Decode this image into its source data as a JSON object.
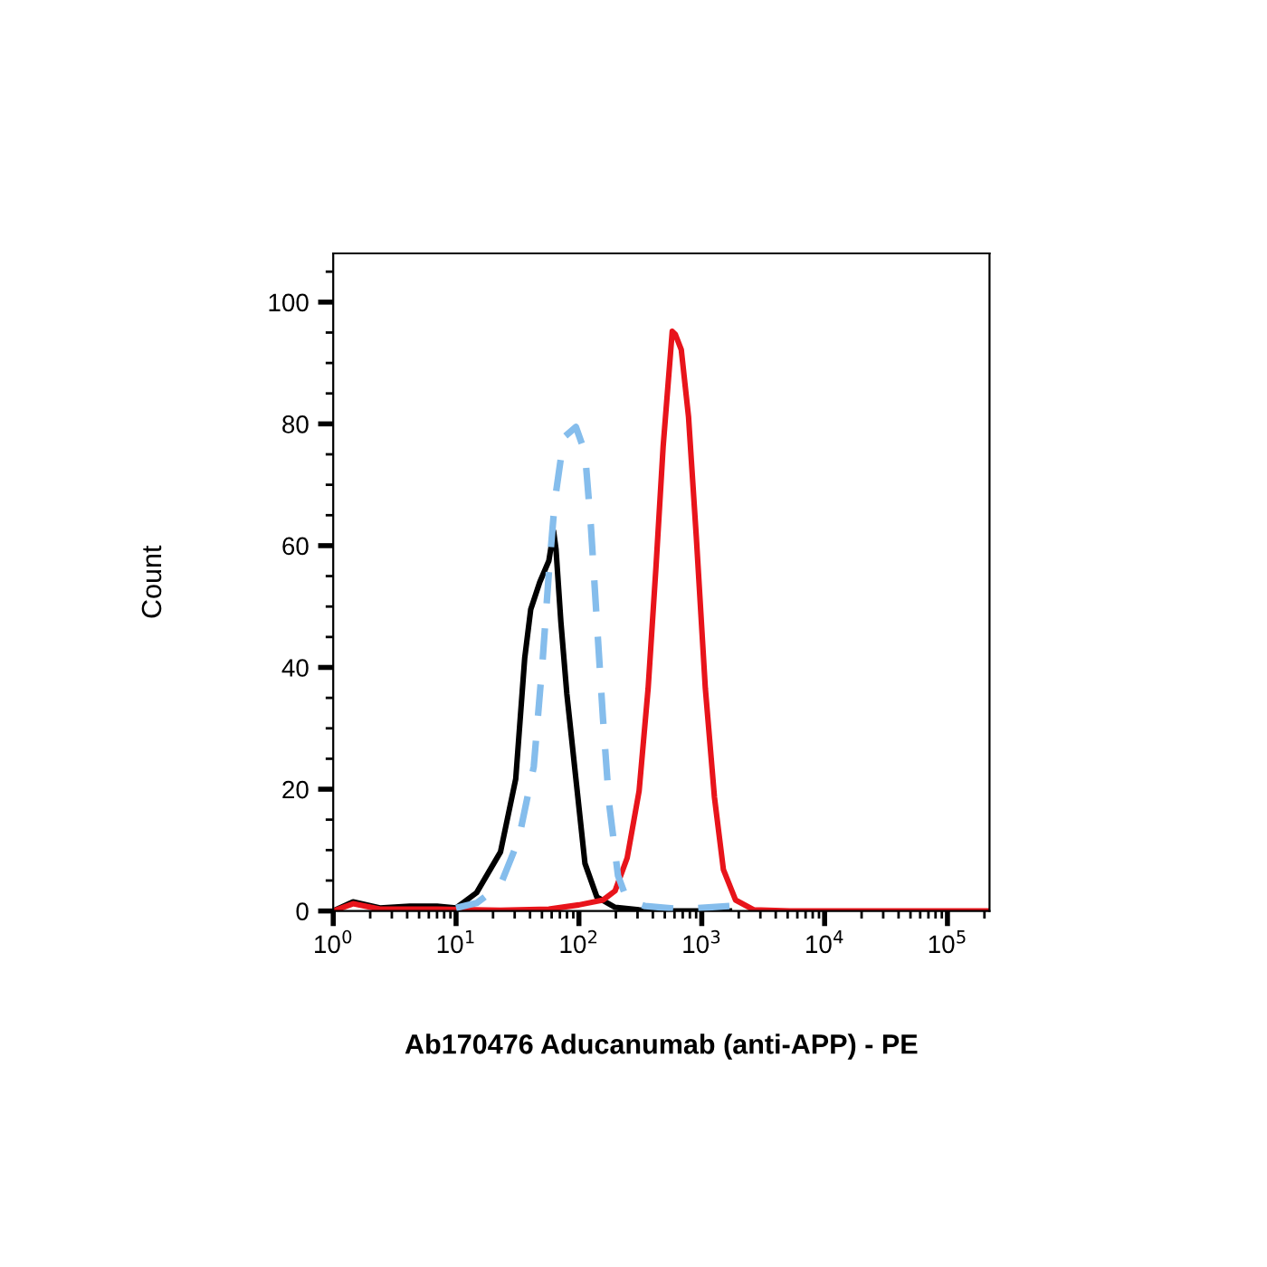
{
  "chart_data": {
    "type": "line",
    "xlabel": "Ab170476 Aducanumab (anti-APP) - PE",
    "ylabel": "Count",
    "log": "x",
    "xlim": [
      1,
      220000
    ],
    "xticks": [
      {
        "value": 1,
        "label": "10$^{0}$"
      },
      {
        "value": 10,
        "label": "10$^{1}$"
      },
      {
        "value": 100,
        "label": "10$^{2}$"
      },
      {
        "value": 1000,
        "label": "10$^{3}$"
      },
      {
        "value": 10000,
        "label": "10$^{4}$"
      },
      {
        "value": 100000,
        "label": "10$^{5}$"
      }
    ],
    "ylim": [
      0,
      108
    ],
    "yticks": [
      0,
      20,
      40,
      60,
      80,
      100
    ],
    "grid": false,
    "legend": false,
    "series": [
      {
        "color": "#000000",
        "line_style": "solid",
        "x": [
          1,
          1.45,
          2.4,
          4.2,
          7,
          10,
          14.7,
          23,
          30.6,
          36.2,
          40.5,
          48,
          56.9,
          62.2,
          65.1,
          71.3,
          79.8,
          94.5,
          112,
          140,
          197,
          309,
          544,
          1680
        ],
        "values": [
          0,
          1.5,
          0.5,
          0.8,
          0.8,
          0.5,
          3,
          9.7,
          21.7,
          41.5,
          49.5,
          54,
          57.5,
          62.4,
          59.4,
          47.5,
          35.6,
          21.7,
          7.8,
          2.3,
          0.6,
          0.2,
          0,
          0
        ]
      },
      {
        "color": "#85bdec",
        "line_style": "dashed",
        "x": [
          10,
          14.7,
          23,
          32.3,
          42.9,
          50.8,
          56.9,
          63.7,
          75.4,
          94.5,
          112,
          125,
          140,
          157,
          176,
          208,
          247,
          346,
          681,
          1680
        ],
        "values": [
          0.5,
          1.3,
          4.3,
          11.7,
          23.7,
          41.5,
          55.5,
          67.4,
          77.8,
          79.5,
          75.3,
          63.4,
          47.5,
          31.6,
          17.7,
          5.8,
          1.8,
          0.8,
          0.3,
          0.8
        ]
      },
      {
        "color": "#e8141b",
        "line_style": "solid",
        "x": [
          1,
          1.45,
          2.4,
          7,
          23,
          56.9,
          100,
          157,
          197,
          247,
          309,
          366,
          424,
          485,
          575,
          609,
          681,
          780,
          903,
          1069,
          1268,
          1500,
          1882,
          2640,
          5200,
          215000
        ],
        "values": [
          0,
          1.2,
          0.3,
          0.3,
          0.1,
          0.3,
          1,
          1.8,
          3.3,
          8.7,
          19.7,
          36.6,
          56.5,
          76.3,
          95.2,
          94.7,
          92.2,
          81.2,
          61.4,
          36.6,
          18.7,
          6.8,
          1.8,
          0.2,
          0,
          0
        ]
      }
    ]
  }
}
